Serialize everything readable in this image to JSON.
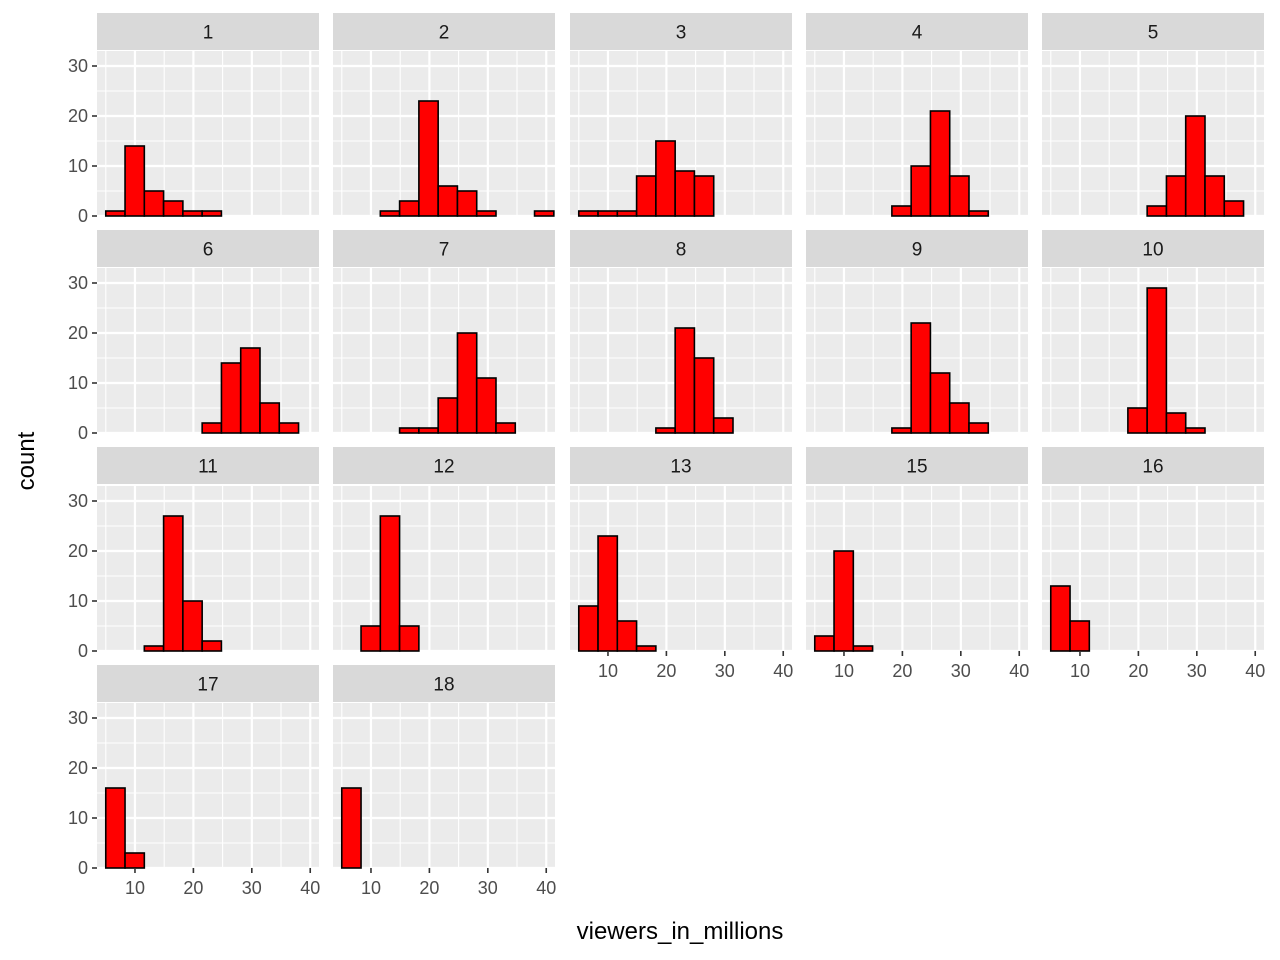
{
  "chart_data": {
    "type": "bar",
    "subtype": "faceted-histogram",
    "xlabel": "viewers_in_millions",
    "ylabel": "count",
    "xlim": [
      3.5,
      41.5
    ],
    "ylim": [
      0,
      33
    ],
    "x_ticks": [
      10,
      20,
      30,
      40
    ],
    "y_ticks": [
      0,
      10,
      20,
      30
    ],
    "grid": true,
    "legend": "none",
    "bin_width": 3.3,
    "bin_starts": [
      5.0,
      8.3,
      11.6,
      14.9,
      18.2,
      21.5,
      24.8,
      28.1,
      31.4,
      34.7,
      38.0
    ],
    "fill_color": "#ff0000",
    "outline_color": "#000000",
    "panel_background": "#ebebeb",
    "strip_background": "#d9d9d9",
    "panels": [
      {
        "label": "1",
        "counts": [
          1,
          14,
          5,
          3,
          1,
          1,
          0,
          0,
          0,
          0,
          0
        ]
      },
      {
        "label": "2",
        "counts": [
          0,
          0,
          1,
          3,
          23,
          6,
          5,
          1,
          0,
          0,
          1
        ]
      },
      {
        "label": "3",
        "counts": [
          1,
          1,
          1,
          8,
          15,
          9,
          8,
          0,
          0,
          0,
          0
        ]
      },
      {
        "label": "4",
        "counts": [
          0,
          0,
          0,
          0,
          2,
          10,
          21,
          8,
          1,
          0,
          0
        ]
      },
      {
        "label": "5",
        "counts": [
          0,
          0,
          0,
          0,
          0,
          2,
          8,
          20,
          8,
          3,
          0
        ]
      },
      {
        "label": "6",
        "counts": [
          0,
          0,
          0,
          0,
          0,
          2,
          14,
          17,
          6,
          2,
          0
        ]
      },
      {
        "label": "7",
        "counts": [
          0,
          0,
          0,
          1,
          1,
          7,
          20,
          11,
          2,
          0,
          0
        ]
      },
      {
        "label": "8",
        "counts": [
          0,
          0,
          0,
          0,
          1,
          21,
          15,
          3,
          0,
          0,
          0
        ]
      },
      {
        "label": "9",
        "counts": [
          0,
          0,
          0,
          0,
          1,
          22,
          12,
          6,
          2,
          0,
          0
        ]
      },
      {
        "label": "10",
        "counts": [
          0,
          0,
          0,
          0,
          5,
          29,
          4,
          1,
          0,
          0,
          0
        ]
      },
      {
        "label": "11",
        "counts": [
          0,
          0,
          1,
          27,
          10,
          2,
          0,
          0,
          0,
          0,
          0
        ]
      },
      {
        "label": "12",
        "counts": [
          0,
          5,
          27,
          5,
          0,
          0,
          0,
          0,
          0,
          0,
          0
        ]
      },
      {
        "label": "13",
        "counts": [
          9,
          23,
          6,
          1,
          0,
          0,
          0,
          0,
          0,
          0,
          0
        ]
      },
      {
        "label": "15",
        "counts": [
          3,
          20,
          1,
          0,
          0,
          0,
          0,
          0,
          0,
          0,
          0
        ]
      },
      {
        "label": "16",
        "counts": [
          13,
          6,
          0,
          0,
          0,
          0,
          0,
          0,
          0,
          0,
          0
        ]
      },
      {
        "label": "17",
        "counts": [
          16,
          3,
          0,
          0,
          0,
          0,
          0,
          0,
          0,
          0,
          0
        ]
      },
      {
        "label": "18",
        "counts": [
          16,
          0,
          0,
          0,
          0,
          0,
          0,
          0,
          0,
          0,
          0
        ]
      }
    ]
  }
}
